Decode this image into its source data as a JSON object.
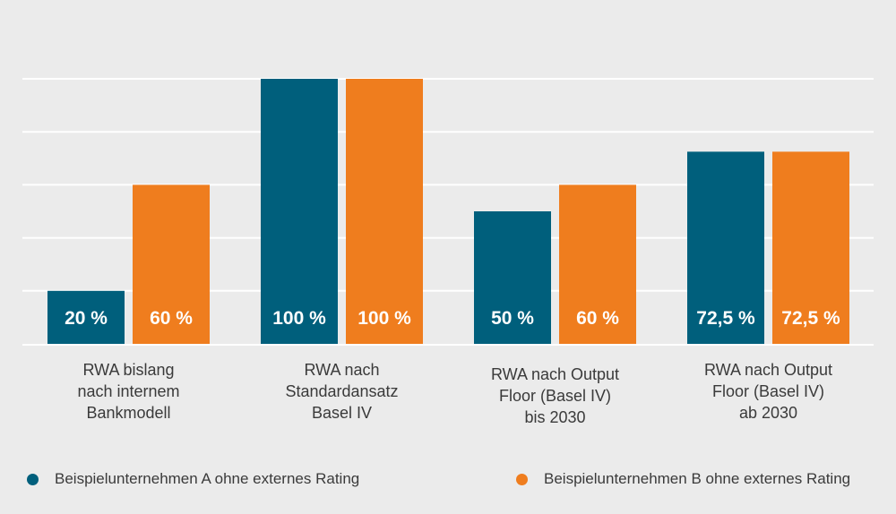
{
  "chart_data": {
    "type": "bar",
    "categories": [
      [
        "RWA bislang",
        "nach internem",
        "Bankmodell"
      ],
      [
        "RWA nach",
        "Standardansatz",
        "Basel IV"
      ],
      [
        "RWA nach Output",
        "Floor (Basel IV)",
        "bis 2030"
      ],
      [
        "RWA nach Output",
        "Floor (Basel IV)",
        "ab 2030"
      ]
    ],
    "series": [
      {
        "name": "Beispielunternehmen A ohne externes Rating",
        "color": "#005f7c",
        "values": [
          20,
          100,
          50,
          72.5
        ],
        "labels": [
          "20 %",
          "100 %",
          "50 %",
          "72,5 %"
        ]
      },
      {
        "name": "Beispielunternehmen B ohne externes Rating",
        "color": "#ef7d1e",
        "values": [
          60,
          100,
          60,
          72.5
        ],
        "labels": [
          "60 %",
          "100 %",
          "60 %",
          "72,5 %"
        ]
      }
    ],
    "ylim": [
      0,
      100
    ],
    "grid": true,
    "legend_position": "bottom"
  }
}
